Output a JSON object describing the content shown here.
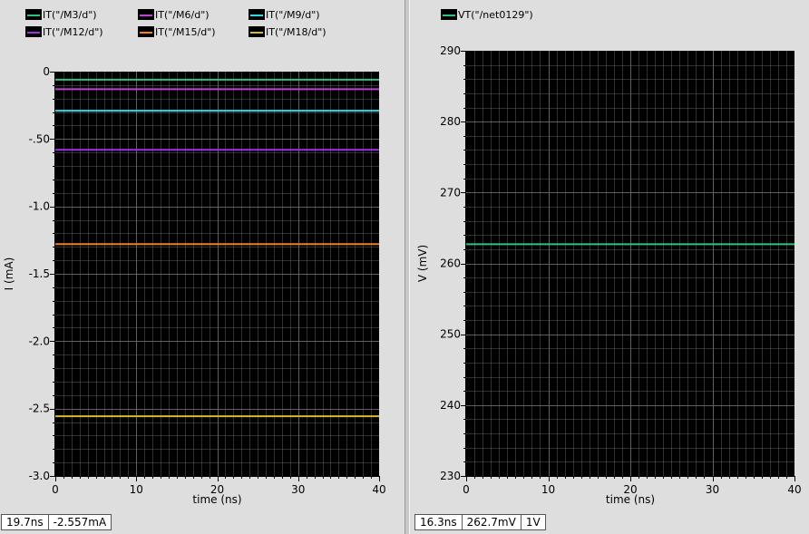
{
  "colors": {
    "plot_bg": "#000000",
    "grid": "#6a6a6a",
    "panel_bg": "#dedede"
  },
  "chart_data": [
    {
      "type": "line",
      "xlabel": "time (ns)",
      "ylabel": "I (mA)",
      "xlim": [
        0,
        40
      ],
      "ylim": [
        -3.0,
        0
      ],
      "x_ticks": [
        0,
        10,
        20,
        30,
        40
      ],
      "y_ticks": [
        0,
        -0.5,
        -1.0,
        -1.5,
        -2.0,
        -2.5,
        -3.0
      ],
      "y_tick_labels": [
        "0",
        "-.50",
        "-1.0",
        "-1.5",
        "-2.0",
        "-2.5",
        "-3.0"
      ],
      "grid": true,
      "legend_position": "top",
      "series": [
        {
          "name": "IT(\"/M3/d\")",
          "color": "#2ec27e",
          "x": [
            0,
            40
          ],
          "values": [
            -0.06,
            -0.06
          ]
        },
        {
          "name": "IT(\"/M6/d\")",
          "color": "#c040d8",
          "x": [
            0,
            40
          ],
          "values": [
            -0.13,
            -0.13
          ]
        },
        {
          "name": "IT(\"/M9/d\")",
          "color": "#30d8e8",
          "x": [
            0,
            40
          ],
          "values": [
            -0.29,
            -0.29
          ]
        },
        {
          "name": "IT(\"/M12/d\")",
          "color": "#a030e0",
          "x": [
            0,
            40
          ],
          "values": [
            -0.58,
            -0.58
          ]
        },
        {
          "name": "IT(\"/M15/d\")",
          "color": "#f08020",
          "x": [
            0,
            40
          ],
          "values": [
            -1.28,
            -1.28
          ]
        },
        {
          "name": "IT(\"/M18/d\")",
          "color": "#d8b830",
          "x": [
            0,
            40
          ],
          "values": [
            -2.557,
            -2.557
          ]
        }
      ],
      "readout": {
        "x": "19.7ns",
        "y": "-2.557mA"
      }
    },
    {
      "type": "line",
      "xlabel": "time (ns)",
      "ylabel": "V (mV)",
      "xlim": [
        0,
        40
      ],
      "ylim": [
        230,
        290
      ],
      "x_ticks": [
        0,
        10,
        20,
        30,
        40
      ],
      "y_ticks": [
        230,
        240,
        250,
        260,
        270,
        280,
        290
      ],
      "y_tick_labels": [
        "230",
        "240",
        "250",
        "260",
        "270",
        "280",
        "290"
      ],
      "grid": true,
      "legend_position": "top",
      "series": [
        {
          "name": "VT(\"/net0129\")",
          "color": "#2ec27e",
          "x": [
            0,
            40
          ],
          "values": [
            262.7,
            262.7
          ]
        }
      ],
      "readout": {
        "x": "16.3ns",
        "y": "262.7mV",
        "extra": "1V"
      }
    }
  ]
}
